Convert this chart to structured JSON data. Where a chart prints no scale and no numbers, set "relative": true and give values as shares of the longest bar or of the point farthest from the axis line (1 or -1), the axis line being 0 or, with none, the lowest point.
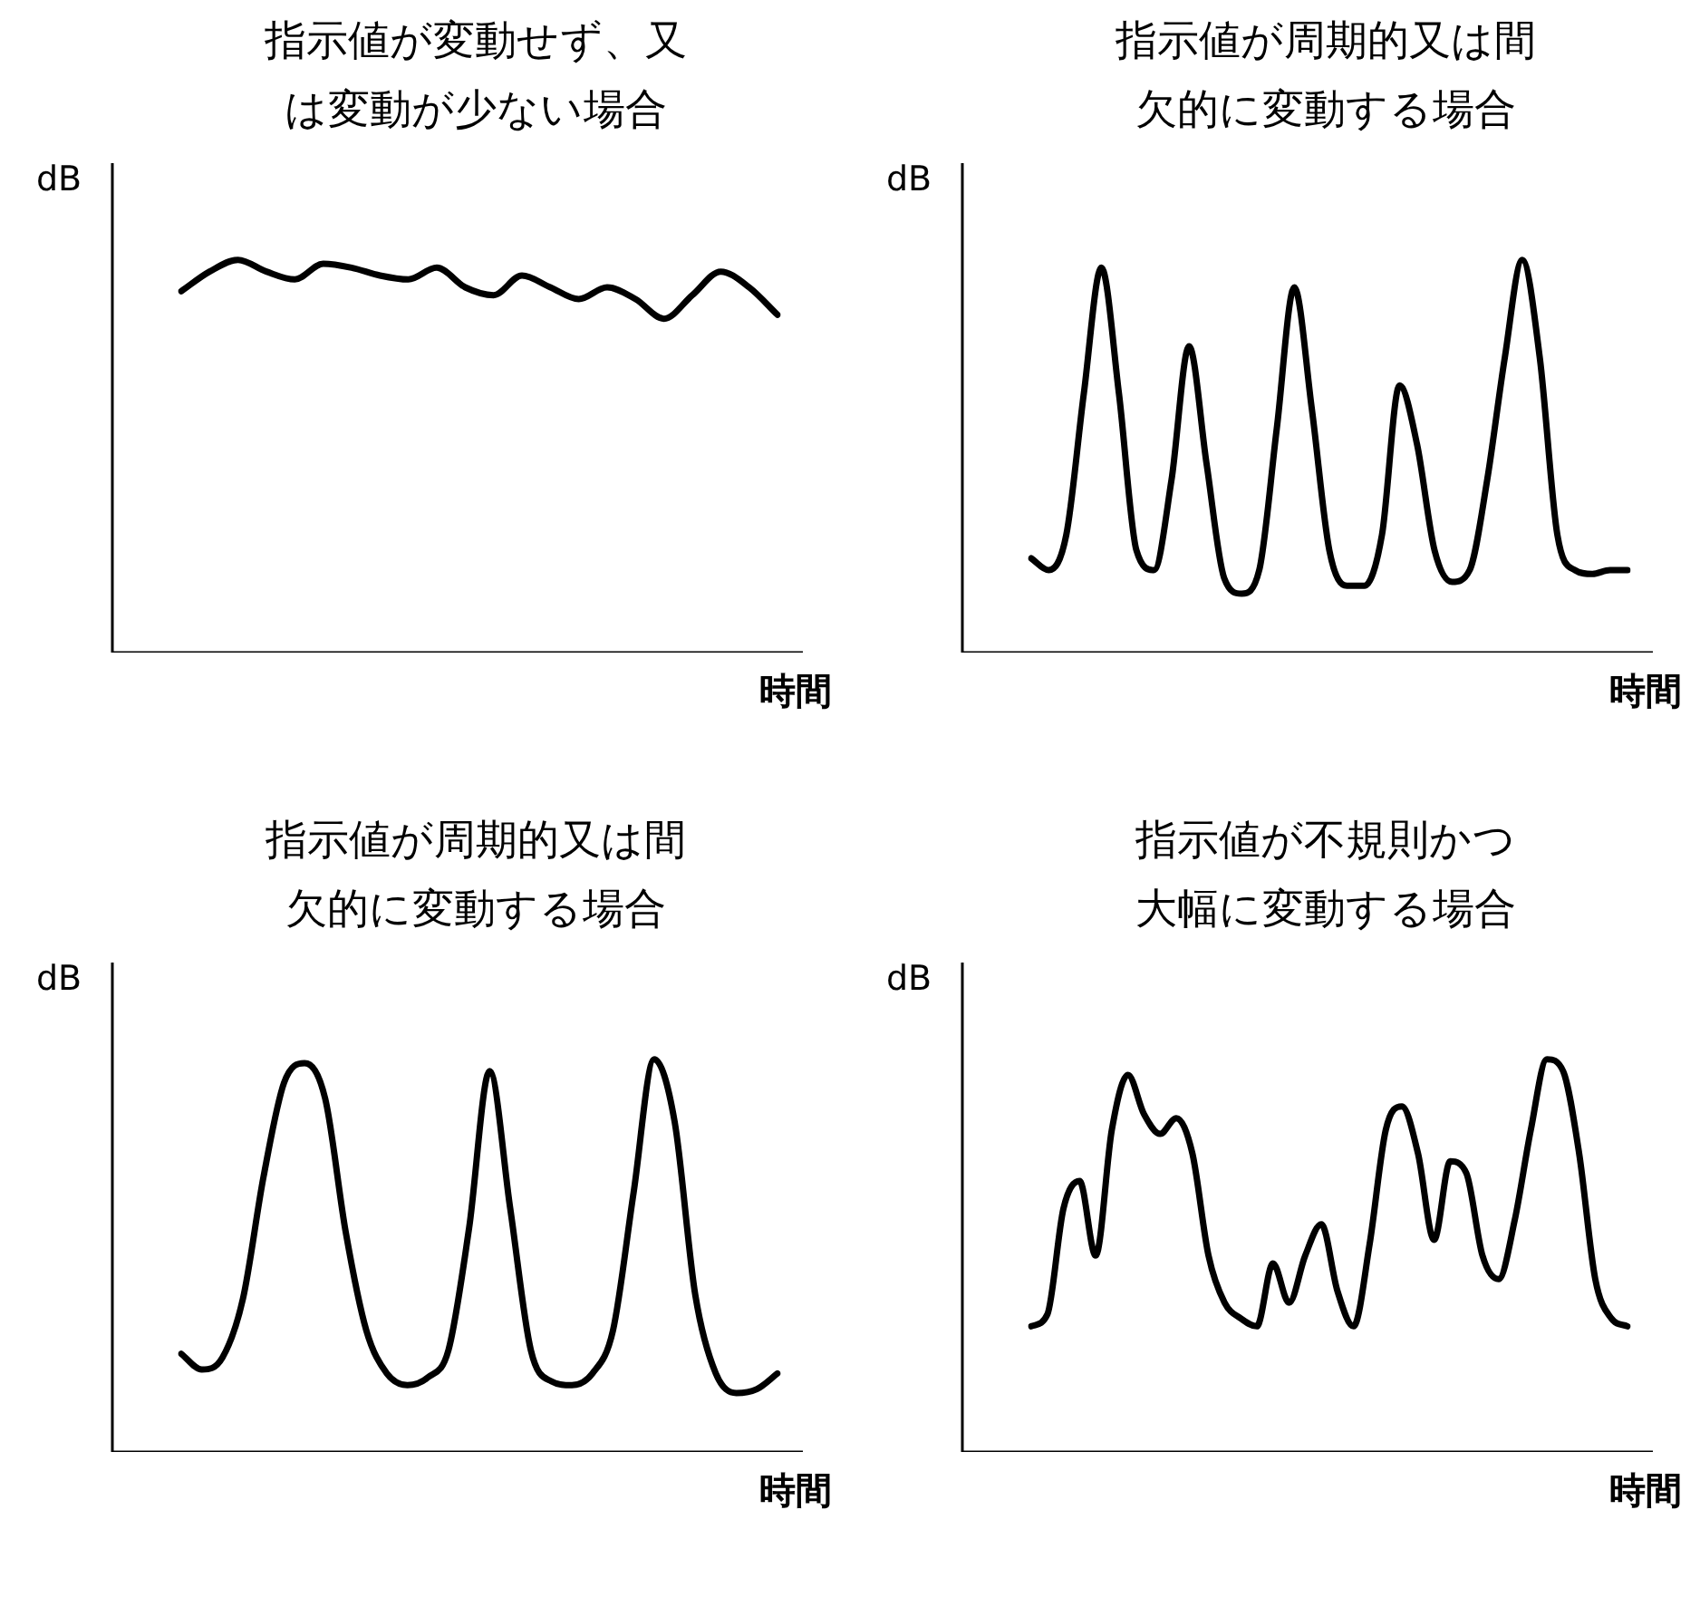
{
  "chart_data": [
    {
      "type": "line",
      "title": "指示値が変動せず、又は変動が少ない場合",
      "ylabel": "dB",
      "xlabel": "時間",
      "relative": true,
      "marker": "none",
      "categories": [
        null,
        null,
        null,
        null,
        null,
        null,
        null,
        null,
        null,
        null,
        null,
        null,
        null,
        null,
        null,
        null,
        null,
        null,
        null,
        null,
        null,
        null
      ],
      "series": [
        {
          "color": "#000000",
          "values": [
            0.92,
            0.97,
            1,
            0.97,
            0.95,
            0.99,
            0.98,
            0.96,
            0.95,
            0.98,
            0.93,
            0.91,
            0.96,
            0.93,
            0.9,
            0.93,
            0.9,
            0.85,
            0.91,
            0.97,
            0.93,
            0.86
          ]
        }
      ]
    },
    {
      "type": "line",
      "title": "指示値が周期的又は間欠的に変動する場合",
      "ylabel": "dB",
      "xlabel": "時間",
      "relative": true,
      "marker": "none",
      "categories": [
        null,
        null,
        null,
        null,
        null,
        null,
        null,
        null,
        null,
        null,
        null,
        null,
        null,
        null,
        null,
        null,
        null,
        null,
        null,
        null,
        null,
        null,
        null,
        null,
        null,
        null,
        null,
        null,
        null,
        null,
        null,
        null,
        null,
        null,
        null
      ],
      "series": [
        {
          "color": "#000000",
          "values": [
            0.24,
            0.21,
            0.3,
            0.66,
            0.98,
            0.66,
            0.26,
            0.21,
            0.44,
            0.78,
            0.48,
            0.19,
            0.15,
            0.21,
            0.57,
            0.93,
            0.62,
            0.26,
            0.17,
            0.17,
            0.3,
            0.68,
            0.53,
            0.26,
            0.18,
            0.21,
            0.44,
            0.75,
            1,
            0.75,
            0.3,
            0.21,
            0.2,
            0.21,
            0.21
          ]
        }
      ]
    },
    {
      "type": "line",
      "title": "指示値が周期的又は間欠的に変動する場合",
      "ylabel": "dB",
      "xlabel": "時間",
      "relative": true,
      "marker": "none",
      "categories": [
        null,
        null,
        null,
        null,
        null,
        null,
        null,
        null,
        null,
        null,
        null,
        null,
        null,
        null,
        null,
        null,
        null,
        null,
        null,
        null,
        null,
        null,
        null,
        null,
        null,
        null,
        null,
        null,
        null,
        null
      ],
      "series": [
        {
          "color": "#000000",
          "values": [
            0.25,
            0.21,
            0.24,
            0.39,
            0.7,
            0.94,
            0.99,
            0.9,
            0.56,
            0.31,
            0.2,
            0.17,
            0.19,
            0.26,
            0.57,
            0.97,
            0.62,
            0.26,
            0.18,
            0.17,
            0.2,
            0.31,
            0.66,
            1,
            0.84,
            0.4,
            0.2,
            0.15,
            0.16,
            0.2
          ]
        }
      ]
    },
    {
      "type": "line",
      "title": "指示値が不規則かつ大幅に変動する場合",
      "ylabel": "dB",
      "xlabel": "時間",
      "relative": true,
      "marker": "none",
      "categories": [
        null,
        null,
        null,
        null,
        null,
        null,
        null,
        null,
        null,
        null,
        null,
        null,
        null,
        null,
        null,
        null,
        null,
        null,
        null,
        null,
        null,
        null,
        null,
        null,
        null,
        null,
        null,
        null,
        null,
        null,
        null,
        null,
        null,
        null,
        null,
        null,
        null,
        null
      ],
      "series": [
        {
          "color": "#000000",
          "values": [
            0.32,
            0.35,
            0.62,
            0.69,
            0.5,
            0.82,
            0.96,
            0.86,
            0.81,
            0.85,
            0.76,
            0.5,
            0.38,
            0.34,
            0.32,
            0.48,
            0.38,
            0.5,
            0.58,
            0.41,
            0.32,
            0.53,
            0.82,
            0.88,
            0.76,
            0.54,
            0.74,
            0.71,
            0.5,
            0.44,
            0.59,
            0.82,
            1,
            0.97,
            0.76,
            0.44,
            0.34,
            0.32
          ]
        }
      ]
    }
  ]
}
